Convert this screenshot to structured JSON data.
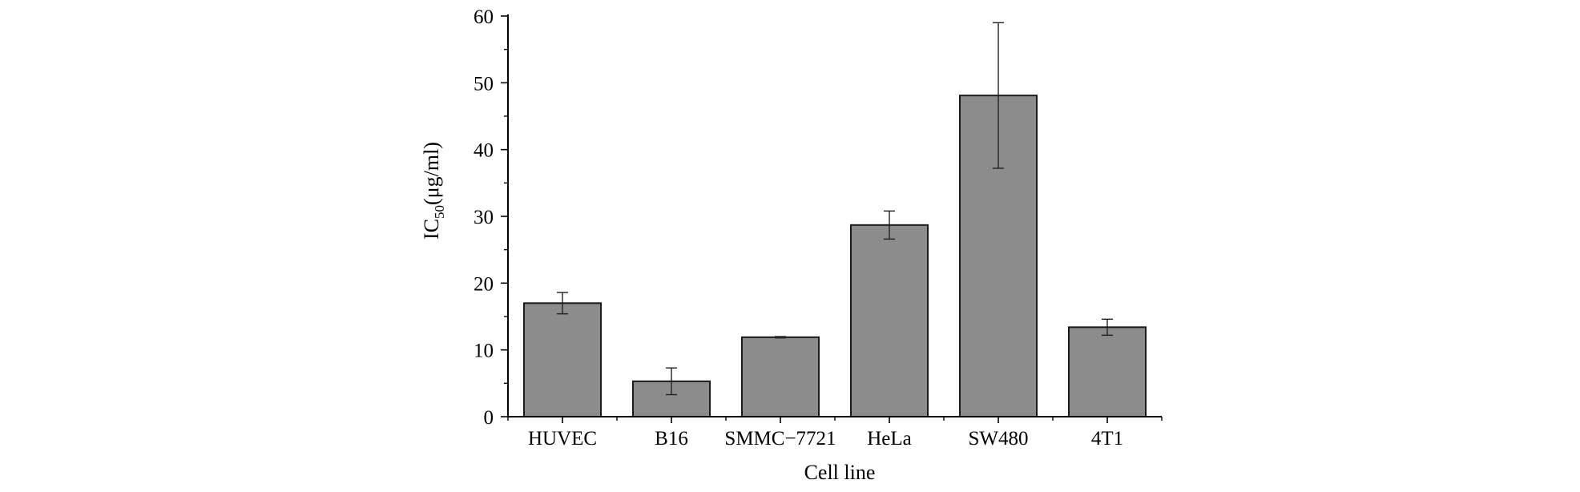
{
  "chart_data": {
    "type": "bar",
    "categories": [
      "HUVEC",
      "B16",
      "SMMC-7721",
      "HeLa",
      "SW480",
      "4T1"
    ],
    "category_labels": [
      "HUVEC",
      "B16",
      "SMMC−7721",
      "HeLa",
      "SW480",
      "4T1"
    ],
    "values": [
      17.0,
      5.3,
      11.9,
      28.7,
      48.1,
      13.4
    ],
    "errors": [
      1.6,
      2.0,
      0.1,
      2.1,
      10.9,
      1.2
    ],
    "ylim": [
      0,
      60
    ],
    "yticks": [
      0,
      10,
      20,
      30,
      40,
      50,
      60
    ],
    "xlabel": "Cell line",
    "ylabel_main": "IC",
    "ylabel_sub": "50",
    "ylabel_unit": "(μg/ml)",
    "bar_color": "#8c8c8c",
    "grid": false
  }
}
